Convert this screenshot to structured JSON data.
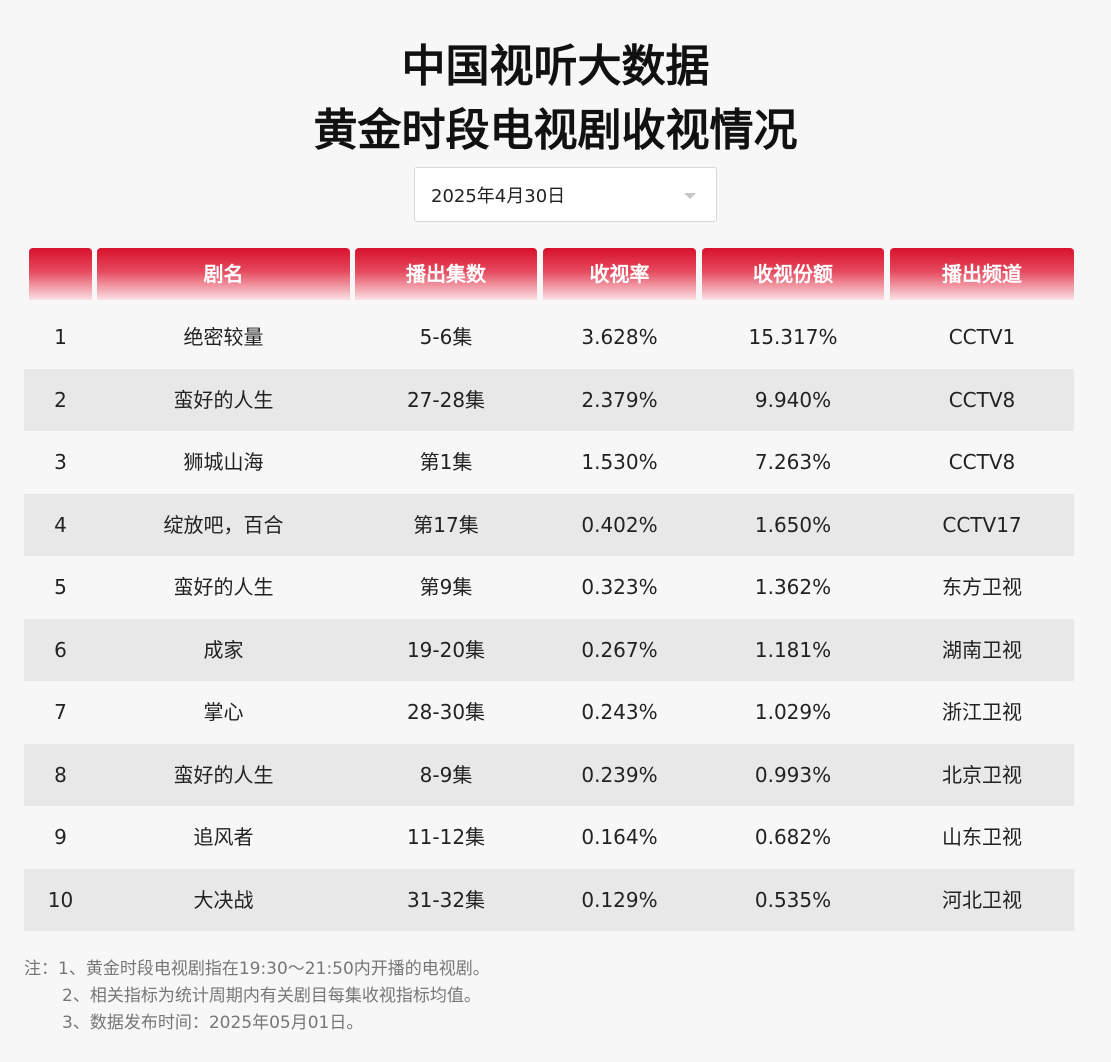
{
  "title_line1": "中国视听大数据",
  "title_line2": "黄金时段电视剧收视情况",
  "date_select": {
    "value": "2025年4月30日"
  },
  "table": {
    "headers": [
      "",
      "剧名",
      "播出集数",
      "收视率",
      "收视份额",
      "播出频道"
    ],
    "rows": [
      {
        "rank": "1",
        "name": "绝密较量",
        "episodes": "5-6集",
        "rating": "3.628%",
        "share": "15.317%",
        "channel": "CCTV1"
      },
      {
        "rank": "2",
        "name": "蛮好的人生",
        "episodes": "27-28集",
        "rating": "2.379%",
        "share": "9.940%",
        "channel": "CCTV8"
      },
      {
        "rank": "3",
        "name": "狮城山海",
        "episodes": "第1集",
        "rating": "1.530%",
        "share": "7.263%",
        "channel": "CCTV8"
      },
      {
        "rank": "4",
        "name": "绽放吧，百合",
        "episodes": "第17集",
        "rating": "0.402%",
        "share": "1.650%",
        "channel": "CCTV17"
      },
      {
        "rank": "5",
        "name": "蛮好的人生",
        "episodes": "第9集",
        "rating": "0.323%",
        "share": "1.362%",
        "channel": "东方卫视"
      },
      {
        "rank": "6",
        "name": "成家",
        "episodes": "19-20集",
        "rating": "0.267%",
        "share": "1.181%",
        "channel": "湖南卫视"
      },
      {
        "rank": "7",
        "name": "掌心",
        "episodes": "28-30集",
        "rating": "0.243%",
        "share": "1.029%",
        "channel": "浙江卫视"
      },
      {
        "rank": "8",
        "name": "蛮好的人生",
        "episodes": "8-9集",
        "rating": "0.239%",
        "share": "0.993%",
        "channel": "北京卫视"
      },
      {
        "rank": "9",
        "name": "追风者",
        "episodes": "11-12集",
        "rating": "0.164%",
        "share": "0.682%",
        "channel": "山东卫视"
      },
      {
        "rank": "10",
        "name": "大决战",
        "episodes": "31-32集",
        "rating": "0.129%",
        "share": "0.535%",
        "channel": "河北卫视"
      }
    ]
  },
  "notes": [
    "注：1、黄金时段电视剧指在19:30～21:50内开播的电视剧。",
    "2、相关指标为统计周期内有关剧目每集收视指标均值。",
    "3、数据发布时间：2025年05月01日。"
  ],
  "colors": {
    "header_red": "#d7112c",
    "alt_row": "#e8e8e8",
    "background": "#f7f7f7"
  }
}
